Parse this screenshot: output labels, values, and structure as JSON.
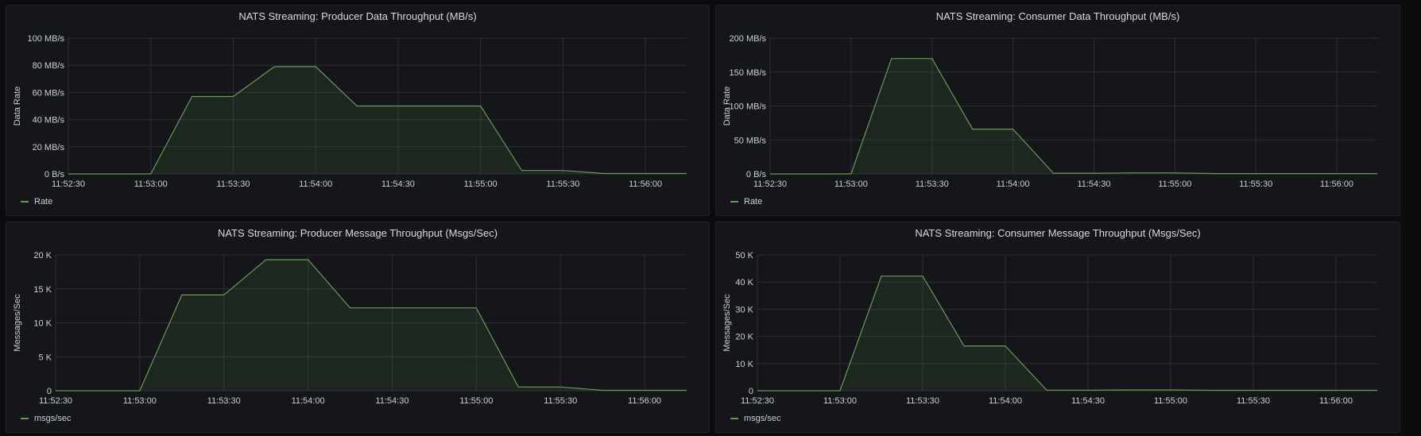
{
  "theme": {
    "series_color": "#629e51",
    "grid_color": "#2c2e33",
    "background": "#141619"
  },
  "chart_data": [
    {
      "type": "area",
      "title": "NATS Streaming: Producer Data Throughput (MB/s)",
      "ylabel": "Data Rate",
      "ylim": [
        0,
        100
      ],
      "yticks": [
        0,
        20,
        40,
        60,
        80,
        100
      ],
      "yticklabels": [
        "0 B/s",
        "20 MB/s",
        "40 MB/s",
        "60 MB/s",
        "80 MB/s",
        "100 MB/s"
      ],
      "xlim": [
        "11:52:30",
        "11:56:15"
      ],
      "xticks": [
        "11:52:30",
        "11:53:00",
        "11:53:30",
        "11:54:00",
        "11:54:30",
        "11:55:00",
        "11:55:30",
        "11:56:00"
      ],
      "legend": "bottom-left",
      "grid": true,
      "series": [
        {
          "name": "Rate",
          "x": [
            "11:52:30",
            "11:53:00",
            "11:53:15",
            "11:53:30",
            "11:53:45",
            "11:54:00",
            "11:54:15",
            "11:54:30",
            "11:54:45",
            "11:55:00",
            "11:55:15",
            "11:55:30",
            "11:55:45",
            "11:56:00",
            "11:56:15"
          ],
          "values": [
            0,
            0,
            57,
            57,
            79,
            79,
            50,
            50,
            50,
            50,
            2.5,
            2.5,
            0.3,
            0.3,
            0.3
          ]
        }
      ]
    },
    {
      "type": "area",
      "title": "NATS Streaming: Consumer Data Throughput (MB/s)",
      "ylabel": "Data Rate",
      "ylim": [
        0,
        200
      ],
      "yticks": [
        0,
        50,
        100,
        150,
        200
      ],
      "yticklabels": [
        "0 B/s",
        "50 MB/s",
        "100 MB/s",
        "150 MB/s",
        "200 MB/s"
      ],
      "xlim": [
        "11:52:30",
        "11:56:15"
      ],
      "xticks": [
        "11:52:30",
        "11:53:00",
        "11:53:30",
        "11:54:00",
        "11:54:30",
        "11:55:00",
        "11:55:30",
        "11:56:00"
      ],
      "legend": "bottom-left",
      "grid": true,
      "series": [
        {
          "name": "Rate",
          "x": [
            "11:52:30",
            "11:53:00",
            "11:53:15",
            "11:53:30",
            "11:53:45",
            "11:54:00",
            "11:54:15",
            "11:54:30",
            "11:54:45",
            "11:55:00",
            "11:55:15",
            "11:55:30",
            "11:55:45",
            "11:56:00",
            "11:56:15"
          ],
          "values": [
            0,
            0,
            170,
            170,
            66,
            66,
            1,
            1,
            1.5,
            1.5,
            0.5,
            0.5,
            0.5,
            0.5,
            0.5
          ]
        }
      ]
    },
    {
      "type": "area",
      "title": "NATS Streaming: Producer Message Throughput (Msgs/Sec)",
      "ylabel": "Messages/Sec",
      "ylim": [
        0,
        20000
      ],
      "yticks": [
        0,
        5000,
        10000,
        15000,
        20000
      ],
      "yticklabels": [
        "0",
        "5 K",
        "10 K",
        "15 K",
        "20 K"
      ],
      "xlim": [
        "11:52:30",
        "11:56:15"
      ],
      "xticks": [
        "11:52:30",
        "11:53:00",
        "11:53:30",
        "11:54:00",
        "11:54:30",
        "11:55:00",
        "11:55:30",
        "11:56:00"
      ],
      "legend": "bottom-left",
      "grid": true,
      "series": [
        {
          "name": "msgs/sec",
          "x": [
            "11:52:30",
            "11:53:00",
            "11:53:15",
            "11:53:30",
            "11:53:45",
            "11:54:00",
            "11:54:15",
            "11:54:30",
            "11:54:45",
            "11:55:00",
            "11:55:15",
            "11:55:30",
            "11:55:45",
            "11:56:00",
            "11:56:15"
          ],
          "values": [
            0,
            0,
            14100,
            14100,
            19300,
            19300,
            12200,
            12200,
            12200,
            12200,
            550,
            550,
            60,
            60,
            60
          ]
        }
      ]
    },
    {
      "type": "area",
      "title": "NATS Streaming: Consumer Message Throughput (Msgs/Sec)",
      "ylabel": "Messages/Sec",
      "ylim": [
        0,
        50000
      ],
      "yticks": [
        0,
        10000,
        20000,
        30000,
        40000,
        50000
      ],
      "yticklabels": [
        "0",
        "10 K",
        "20 K",
        "30 K",
        "40 K",
        "50 K"
      ],
      "xlim": [
        "11:52:30",
        "11:56:15"
      ],
      "xticks": [
        "11:52:30",
        "11:53:00",
        "11:53:30",
        "11:54:00",
        "11:54:30",
        "11:55:00",
        "11:55:30",
        "11:56:00"
      ],
      "legend": "bottom-left",
      "grid": true,
      "series": [
        {
          "name": "msgs/sec",
          "x": [
            "11:52:30",
            "11:53:00",
            "11:53:15",
            "11:53:30",
            "11:53:45",
            "11:54:00",
            "11:54:15",
            "11:54:30",
            "11:54:45",
            "11:55:00",
            "11:55:15",
            "11:55:30",
            "11:55:45",
            "11:56:00",
            "11:56:15"
          ],
          "values": [
            0,
            0,
            42200,
            42200,
            16500,
            16500,
            200,
            200,
            300,
            300,
            150,
            150,
            150,
            150,
            150
          ]
        }
      ]
    }
  ]
}
